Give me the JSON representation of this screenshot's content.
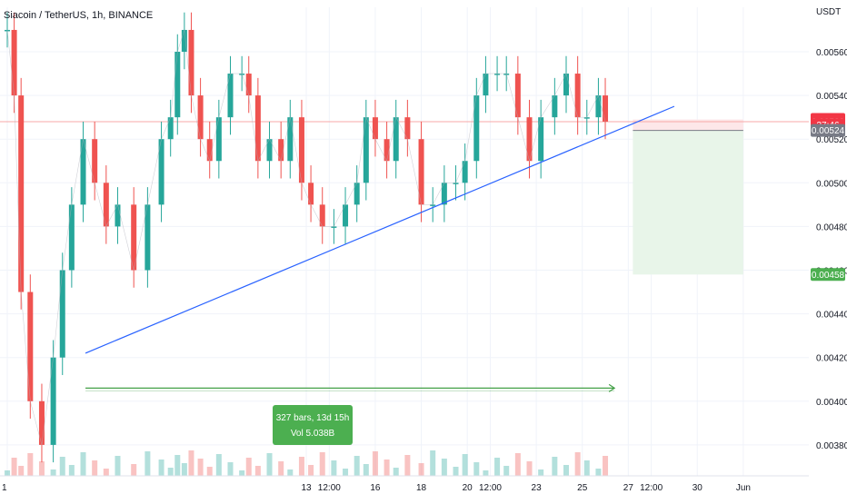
{
  "title": "Siacoin / TetherUS, 1h, BINANCE",
  "currency": "USDT",
  "colors": {
    "up": "#26a69a",
    "down": "#ef5350",
    "trendline": "#2962ff",
    "measure": "#43a047",
    "target_zone": "#e8f5e9",
    "stop_zone": "#fde7e9",
    "axis_text": "#131722",
    "grid": "#f0f3fa"
  },
  "price_tags": [
    {
      "id": "high",
      "label": "0.00529",
      "value": 0.00529,
      "color": "#f23645"
    },
    {
      "id": "last",
      "label": "0.00528",
      "value": 0.00528,
      "color": "#f23645"
    },
    {
      "id": "countdown",
      "label": "37:46",
      "value": 0.005265,
      "color": "#f23645"
    },
    {
      "id": "entry",
      "label": "0.00524",
      "value": 0.00524,
      "color": "#787b86"
    },
    {
      "id": "target",
      "label": "0.00458",
      "value": 0.00458,
      "color": "#4caf50"
    }
  ],
  "measure_box": {
    "line1": "327 bars, 13d 15h",
    "line2": "Vol 5.038B"
  },
  "chart_data": {
    "type": "line",
    "title": "Siacoin / TetherUS, 1h, BINANCE",
    "xlabel": "",
    "ylabel": "USDT",
    "ylim": [
      0.0037,
      0.0058
    ],
    "grid": true,
    "y_ticks": [
      0.0056,
      0.0054,
      0.0052,
      0.005,
      0.0048,
      0.0046,
      0.0044,
      0.0042,
      0.004,
      0.0038
    ],
    "y_tick_labels": [
      "0.00560",
      "0.00540",
      "0.00520",
      "0.00500",
      "0.00480",
      "0.00460",
      "0.00440",
      "0.00420",
      "0.00400",
      "0.00380"
    ],
    "x_tick_labels": [
      "1",
      "13",
      "12:00",
      "16",
      "18",
      "20",
      "12:00",
      "23",
      "25",
      "27",
      "12:00",
      "30",
      "Jun"
    ],
    "x_tick_pos": [
      0,
      13,
      14,
      16,
      18,
      20,
      21,
      23,
      25,
      27,
      28,
      30,
      32
    ],
    "x_range": [
      0,
      33
    ],
    "series": [
      {
        "kind": "price",
        "x": [
          0,
          0.3,
          0.6,
          1.0,
          1.5,
          2.0,
          2.4,
          2.8,
          3.3,
          3.8,
          4.3,
          4.8,
          5.5,
          6.1,
          6.7,
          7.1,
          7.4,
          7.7,
          8.0,
          8.4,
          8.8,
          9.2,
          9.7,
          10.2,
          10.5,
          10.9,
          11.4,
          11.9,
          12.3,
          12.8,
          13.2,
          13.7,
          14.2,
          14.7,
          15.2,
          15.6,
          16.0,
          16.5,
          16.9,
          17.4,
          18.0,
          18.5,
          19.0,
          19.5,
          19.9,
          20.4,
          20.8,
          21.3,
          21.7,
          22.2,
          22.7,
          23.2,
          23.8,
          24.3,
          24.8,
          25.2,
          25.7,
          26.0
        ],
        "close": [
          0.0057,
          0.0054,
          0.0045,
          0.004,
          0.0038,
          0.0042,
          0.0046,
          0.0049,
          0.0052,
          0.005,
          0.0048,
          0.0049,
          0.0046,
          0.0049,
          0.0052,
          0.0053,
          0.0056,
          0.0057,
          0.0054,
          0.0052,
          0.0051,
          0.0053,
          0.0055,
          0.0055,
          0.0054,
          0.0051,
          0.0052,
          0.0051,
          0.0053,
          0.005,
          0.0049,
          0.0048,
          0.0048,
          0.0049,
          0.005,
          0.0053,
          0.0052,
          0.0051,
          0.0053,
          0.0052,
          0.0049,
          0.0049,
          0.005,
          0.005,
          0.0051,
          0.0054,
          0.0055,
          0.0055,
          0.0055,
          0.0053,
          0.0051,
          0.0053,
          0.0054,
          0.0055,
          0.0053,
          0.0053,
          0.0054,
          0.00528
        ]
      },
      {
        "kind": "trendline",
        "x": [
          3.4,
          29.0
        ],
        "y": [
          0.00422,
          0.00535
        ]
      },
      {
        "kind": "measure",
        "x": [
          3.4,
          26.4
        ],
        "y": [
          0.00406,
          0.00406
        ]
      },
      {
        "kind": "position",
        "x": [
          27.2,
          32.0
        ],
        "entry": 0.00524,
        "stop": 0.00529,
        "target": 0.00458
      }
    ]
  }
}
